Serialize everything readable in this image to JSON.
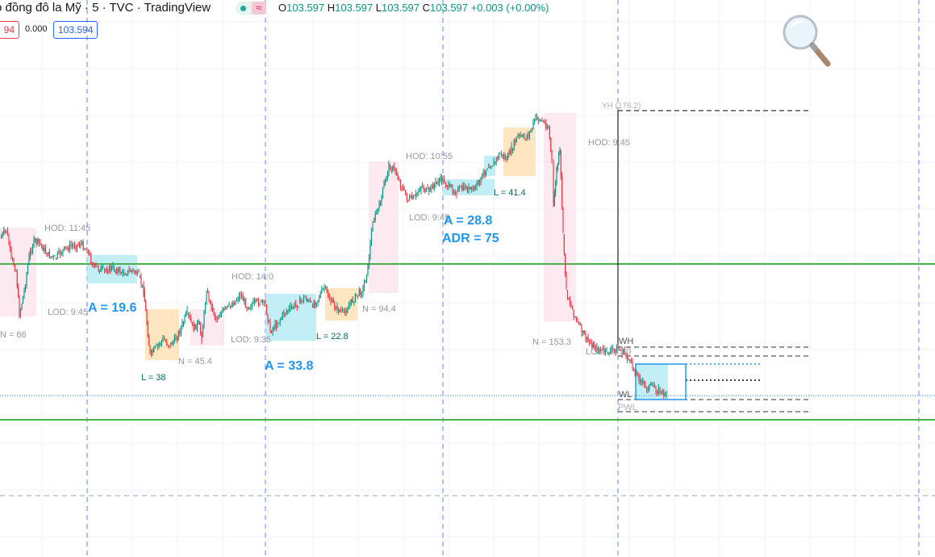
{
  "header": {
    "symbol_title": "ỏ đồng đô la Mỹ · 5 · TVC · TradingView",
    "ohlc": {
      "o_label": "O",
      "o": "103.597",
      "h_label": "H",
      "h": "103.597",
      "l_label": "L",
      "l": "103.597",
      "c_label": "C",
      "c": "103.597",
      "change": "+0.003 (+0.00%)"
    },
    "sell_price": "94",
    "spread": "0.000",
    "buy_price": "103.594"
  },
  "colors": {
    "up": "#089981",
    "down": "#f23645",
    "accent": "#2962ff",
    "green_line": "#4caf50",
    "blue_box": "#b2ebf2",
    "orange_box": "#ffe0b2",
    "pink_box": "#fce4ec"
  },
  "annotations": {
    "hod1": "HOD: 11:45",
    "lod1": "LOD: 9:45",
    "n1": "N = 66",
    "a1": "A = 19.6",
    "l1": "L = 38",
    "n2": "N = 45.4",
    "hod2": "HOD: 14:0",
    "lod2": "LOD: 9:35",
    "a2": "A = 33.8",
    "l2": "L = 22.8",
    "n3": "N = 94.4",
    "hod3": "HOD: 10:55",
    "lod3": "LOD: 9:45",
    "a3": "A = 28.8",
    "adr": "ADR = 75",
    "l3": "L = 41.4",
    "hod4": "HOD: 9:45",
    "yh": "YH (176.2)",
    "n4": "N = 153.3",
    "lod4": "LOD: 13:30",
    "wh": "WH",
    "wl": "WL",
    "pwl": "PWL"
  },
  "icons": {
    "zoom": "magnifier-icon"
  }
}
